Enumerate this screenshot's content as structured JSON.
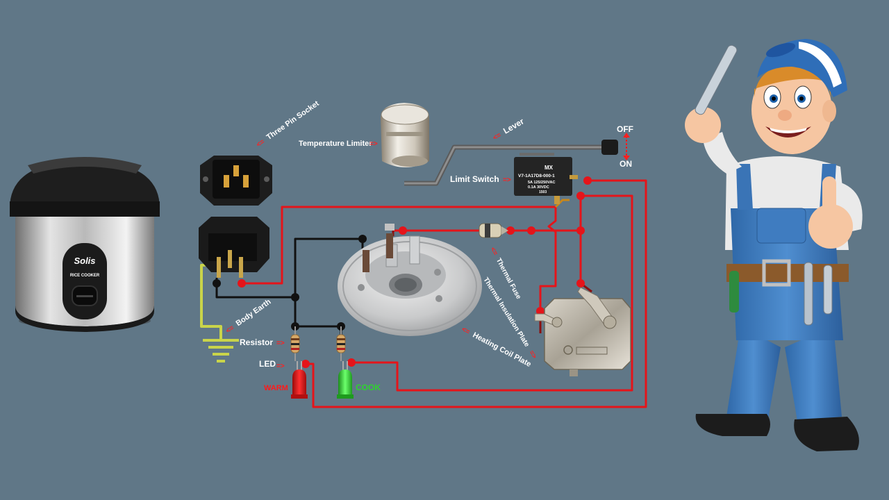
{
  "labels": {
    "three_pin_socket": "Three Pin Socket",
    "temperature_limiter": "Temperature Limiter",
    "lever": "Lever",
    "off": "OFF",
    "on": "ON",
    "limit_switch": "Limit Switch",
    "thermal_fuse": "Thermal Fuse",
    "thermal_insulation_plate": "Thermal Insulation Plate",
    "heating_coil_plate": "Heating Coil Plate",
    "body_earth": "Body Earth",
    "resistor": "Resistor",
    "led": "LED",
    "warm": "WARM",
    "cook": "COOK"
  },
  "arrows": {
    "right": "=>",
    "left": "<="
  },
  "components": {
    "rice_cooker_brand": "Solis",
    "rice_cooker_model": "RICE COOKER",
    "switch_model": "V7-1A17D8-000-1",
    "switch_brand": "MX",
    "switch_rating1": "5A 125/250VAC",
    "switch_rating2": "0.1A 30VDC",
    "switch_code": "1503"
  },
  "colors": {
    "background": "#607787",
    "live_wire": "#e5141a",
    "dark_red_wire": "#8a1010",
    "neutral_wire": "#111111",
    "earth_wire": "#c9d44a",
    "warm_led": "#e01818",
    "cook_led": "#2fd22f",
    "label_text": "#ffffff",
    "arrow_text": "#ff2020"
  }
}
